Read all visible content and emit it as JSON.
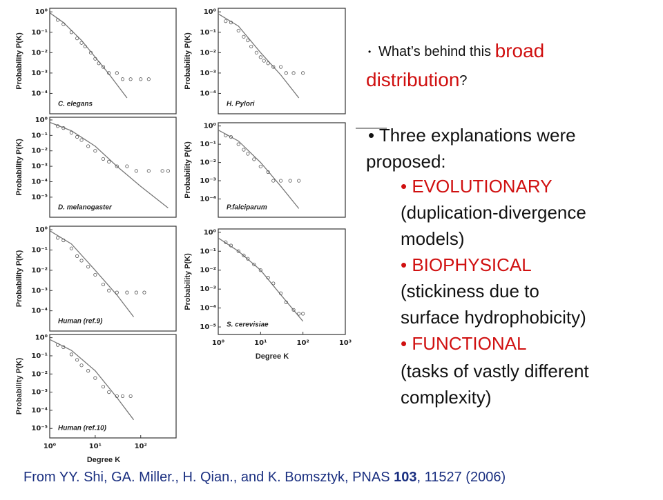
{
  "slide": {
    "question": {
      "lead": "What’s behind this",
      "highlight_1": "broad",
      "highlight_2": "distribution",
      "end": "?"
    },
    "bullet_2": [
      "Three explanations were",
      "proposed:"
    ],
    "items": [
      {
        "heading": "• EVOLUTIONARY",
        "detail": [
          "(duplication-divergence",
          "models)"
        ]
      },
      {
        "heading": "• BIOPHYSICAL",
        "detail": [
          "(stickiness due to",
          "surface hydrophobicity)"
        ]
      },
      {
        "heading": "• FUNCTIONAL",
        "detail": [
          "(tasks of vastly different",
          "complexity)"
        ]
      }
    ],
    "citation": {
      "prefix": "From YY. Shi, GA. Miller., H. Qian., and K. Bomsztyk, PNAS ",
      "volume": "103",
      "suffix": ", 11527 (2006)"
    }
  },
  "chart_data": [
    {
      "type": "scatter",
      "title": "C. elegans",
      "y_label": "Probability P(K)",
      "log_scale": true,
      "xlim": [
        1,
        600
      ],
      "ylim": [
        1e-05,
        1.5
      ],
      "yticks": [
        {
          "value": 1,
          "label": "10⁰"
        },
        {
          "value": 0.1,
          "label": "10⁻¹"
        },
        {
          "value": 0.01,
          "label": "10⁻²"
        },
        {
          "value": 0.001,
          "label": "10⁻³"
        },
        {
          "value": 0.0001,
          "label": "10⁻⁴"
        }
      ],
      "fit": {
        "x": [
          1,
          2,
          5,
          10,
          20,
          50
        ],
        "y": [
          0.9,
          0.3,
          0.04,
          0.006,
          0.0009,
          6e-05
        ]
      },
      "points": {
        "x": [
          1.5,
          2,
          3,
          4,
          5,
          6,
          8,
          10,
          12,
          15,
          20,
          30,
          40,
          60,
          100,
          150
        ],
        "y": [
          0.4,
          0.25,
          0.1,
          0.05,
          0.03,
          0.02,
          0.01,
          0.005,
          0.003,
          0.002,
          0.001,
          0.001,
          0.0005,
          0.0005,
          0.0005,
          0.0005
        ]
      },
      "color": "#555555"
    },
    {
      "type": "scatter",
      "title": "H. Pylori",
      "y_label": "Probability P(K)",
      "log_scale": true,
      "xlim": [
        1,
        1000
      ],
      "ylim": [
        1e-05,
        1.5
      ],
      "yticks": [
        {
          "value": 1,
          "label": "10⁰"
        },
        {
          "value": 0.1,
          "label": "10⁻¹"
        },
        {
          "value": 0.01,
          "label": "10⁻²"
        },
        {
          "value": 0.001,
          "label": "10⁻³"
        },
        {
          "value": 0.0001,
          "label": "10⁻⁴"
        }
      ],
      "fit": {
        "x": [
          1,
          3,
          10,
          30,
          80
        ],
        "y": [
          0.8,
          0.2,
          0.01,
          0.0008,
          6e-05
        ]
      },
      "points": {
        "x": [
          1.5,
          2,
          3,
          4,
          5,
          6,
          8,
          10,
          12,
          15,
          20,
          30,
          40,
          60,
          100
        ],
        "y": [
          0.35,
          0.3,
          0.12,
          0.06,
          0.04,
          0.02,
          0.01,
          0.006,
          0.004,
          0.003,
          0.002,
          0.002,
          0.001,
          0.001,
          0.001
        ]
      },
      "color": "#555555"
    },
    {
      "type": "scatter",
      "title": "D. melanogaster",
      "y_label": "Probability P(K)",
      "log_scale": true,
      "xlim": [
        1,
        600
      ],
      "ylim": [
        5e-07,
        1.5
      ],
      "yticks": [
        {
          "value": 1,
          "label": "10⁰"
        },
        {
          "value": 0.1,
          "label": "10⁻¹"
        },
        {
          "value": 0.01,
          "label": "10⁻²"
        },
        {
          "value": 0.001,
          "label": "10⁻³"
        },
        {
          "value": 0.0001,
          "label": "10⁻⁴"
        },
        {
          "value": 1e-05,
          "label": "10⁻⁵"
        }
      ],
      "fit": {
        "x": [
          1,
          3,
          10,
          30,
          100,
          400
        ],
        "y": [
          0.7,
          0.2,
          0.02,
          0.001,
          5e-05,
          2e-06
        ]
      },
      "points": {
        "x": [
          1.5,
          2,
          3,
          4,
          5,
          7,
          10,
          15,
          20,
          30,
          50,
          80,
          150,
          300,
          400
        ],
        "y": [
          0.4,
          0.3,
          0.15,
          0.08,
          0.05,
          0.02,
          0.01,
          0.003,
          0.002,
          0.001,
          0.001,
          0.0005,
          0.0005,
          0.0005,
          0.0005
        ]
      },
      "color": "#555555"
    },
    {
      "type": "scatter",
      "title": "P.falciparum",
      "y_label": "Probability P(K)",
      "log_scale": true,
      "xlim": [
        1,
        1000
      ],
      "ylim": [
        1e-05,
        1.5
      ],
      "yticks": [
        {
          "value": 1,
          "label": "10⁰"
        },
        {
          "value": 0.1,
          "label": "10⁻¹"
        },
        {
          "value": 0.01,
          "label": "10⁻²"
        },
        {
          "value": 0.001,
          "label": "10⁻³"
        },
        {
          "value": 0.0001,
          "label": "10⁻⁴"
        }
      ],
      "fit": {
        "x": [
          1,
          3,
          10,
          30,
          80
        ],
        "y": [
          0.6,
          0.15,
          0.01,
          0.0005,
          3e-05
        ]
      },
      "points": {
        "x": [
          1.5,
          2,
          3,
          4,
          5,
          7,
          10,
          15,
          20,
          30,
          50,
          80
        ],
        "y": [
          0.3,
          0.25,
          0.1,
          0.05,
          0.03,
          0.015,
          0.006,
          0.003,
          0.001,
          0.001,
          0.001,
          0.001
        ]
      },
      "color": "#555555"
    },
    {
      "type": "scatter",
      "title": "Human (ref.9)",
      "y_label": "Probability P(K)",
      "log_scale": true,
      "xlim": [
        1,
        600
      ],
      "ylim": [
        1e-05,
        1.5
      ],
      "yticks": [
        {
          "value": 1,
          "label": "10⁰"
        },
        {
          "value": 0.1,
          "label": "10⁻¹"
        },
        {
          "value": 0.01,
          "label": "10⁻²"
        },
        {
          "value": 0.001,
          "label": "10⁻³"
        },
        {
          "value": 0.0001,
          "label": "10⁻⁴"
        }
      ],
      "fit": {
        "x": [
          1,
          3,
          10,
          30,
          70
        ],
        "y": [
          0.9,
          0.2,
          0.01,
          0.0006,
          5e-05
        ]
      },
      "points": {
        "x": [
          1.5,
          2,
          3,
          4,
          5,
          7,
          10,
          15,
          20,
          30,
          50,
          80,
          120
        ],
        "y": [
          0.4,
          0.3,
          0.12,
          0.05,
          0.03,
          0.015,
          0.006,
          0.002,
          0.001,
          0.0008,
          0.0008,
          0.0008,
          0.0008
        ]
      },
      "color": "#555555"
    },
    {
      "type": "scatter",
      "title": "S. cerevisiae",
      "y_label": "Probability P(K)",
      "x_label": "Degree K",
      "log_scale": true,
      "xlim": [
        1,
        1000
      ],
      "ylim": [
        4e-06,
        1.5
      ],
      "yticks": [
        {
          "value": 1,
          "label": "10⁰"
        },
        {
          "value": 0.1,
          "label": "10⁻¹"
        },
        {
          "value": 0.01,
          "label": "10⁻²"
        },
        {
          "value": 0.001,
          "label": "10⁻³"
        },
        {
          "value": 0.0001,
          "label": "10⁻⁴"
        },
        {
          "value": 1e-05,
          "label": "10⁻⁵"
        }
      ],
      "xticks": [
        {
          "value": 1,
          "label": "10⁰"
        },
        {
          "value": 10,
          "label": "10¹"
        },
        {
          "value": 100,
          "label": "10²"
        },
        {
          "value": 1000,
          "label": "10³"
        }
      ],
      "fit": {
        "x": [
          1,
          3,
          10,
          30,
          100
        ],
        "y": [
          0.5,
          0.1,
          0.01,
          0.0005,
          2e-05
        ]
      },
      "points": {
        "x": [
          1.5,
          2,
          3,
          4,
          5,
          7,
          10,
          15,
          20,
          30,
          40,
          60,
          80,
          100
        ],
        "y": [
          0.3,
          0.2,
          0.1,
          0.06,
          0.04,
          0.02,
          0.01,
          0.004,
          0.002,
          0.0006,
          0.0002,
          8e-05,
          5e-05,
          5e-05
        ]
      },
      "color": "#555555"
    },
    {
      "type": "scatter",
      "title": "Human (ref.10)",
      "y_label": "Probability P(K)",
      "x_label": "Degree K",
      "log_scale": true,
      "xlim": [
        1,
        600
      ],
      "ylim": [
        3e-06,
        1.5
      ],
      "yticks": [
        {
          "value": 1,
          "label": "10⁰"
        },
        {
          "value": 0.1,
          "label": "10⁻¹"
        },
        {
          "value": 0.01,
          "label": "10⁻²"
        },
        {
          "value": 0.001,
          "label": "10⁻³"
        },
        {
          "value": 0.0001,
          "label": "10⁻⁴"
        },
        {
          "value": 1e-05,
          "label": "10⁻⁵"
        }
      ],
      "xticks": [
        {
          "value": 1,
          "label": "10⁰"
        },
        {
          "value": 10,
          "label": "10¹"
        },
        {
          "value": 100,
          "label": "10²"
        }
      ],
      "fit": {
        "x": [
          1,
          3,
          10,
          30,
          70
        ],
        "y": [
          0.8,
          0.2,
          0.015,
          0.0005,
          3e-05
        ]
      },
      "points": {
        "x": [
          1.5,
          2,
          3,
          4,
          5,
          7,
          10,
          15,
          20,
          30,
          40,
          60
        ],
        "y": [
          0.4,
          0.3,
          0.12,
          0.06,
          0.03,
          0.015,
          0.006,
          0.002,
          0.001,
          0.0006,
          0.0006,
          0.0006
        ]
      },
      "color": "#555555"
    }
  ]
}
